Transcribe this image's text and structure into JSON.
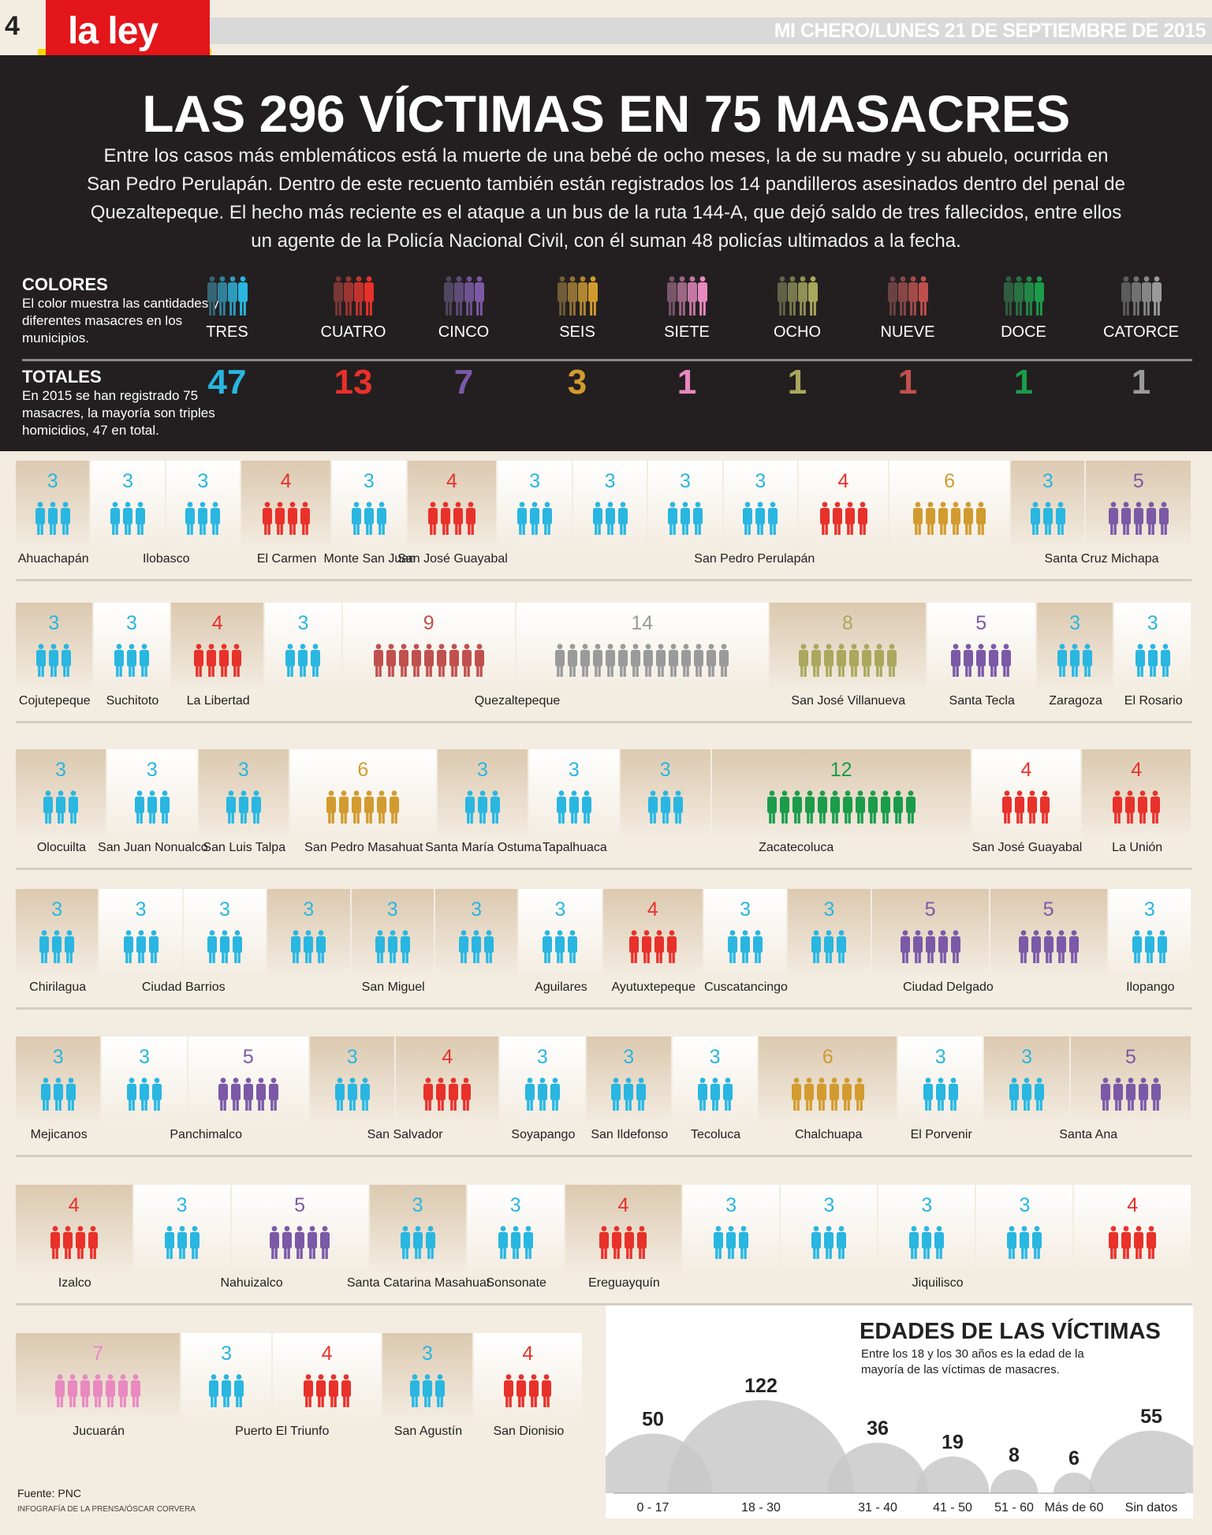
{
  "page_number": "4",
  "section": "la ley",
  "dateline": "MI CHERO/LUNES 21 DE SEPTIEMBRE DE 2015",
  "title": "LAS 296 VÍCTIMAS EN 75 MASACRES",
  "intro": "Entre los casos más emblemáticos está la muerte de una bebé de ocho meses, la de su madre y su abuelo, ocurrida en San Pedro Perulapán. Dentro de este recuento también están registrados los 14 pandilleros asesinados dentro del penal de Quezaltepeque. El hecho más reciente es el ataque a un bus de la ruta 144-A, que dejó saldo de  tres fallecidos, entre ellos un agente de la Policía Nacional Civil, con él suman 48 policías ultimados a la fecha.",
  "colores": {
    "title": "COLORES",
    "text": "El color muestra las cantidades y diferentes masacres en los municipios."
  },
  "totales": {
    "title": "TOTALES",
    "text": "En 2015 se han registrado 75 masacres, la mayoría son triples homicidios, 47 en total."
  },
  "legend": [
    {
      "label": "TRES",
      "total": "47",
      "size": 3,
      "color": "#29b6e0"
    },
    {
      "label": "CUATRO",
      "total": "13",
      "size": 4,
      "color": "#e8312a"
    },
    {
      "label": "CINCO",
      "total": "7",
      "size": 5,
      "color": "#7b59a6"
    },
    {
      "label": "SEIS",
      "total": "3",
      "size": 6,
      "color": "#d29b2f"
    },
    {
      "label": "SIETE",
      "total": "1",
      "size": 7,
      "color": "#e889c0"
    },
    {
      "label": "OCHO",
      "total": "1",
      "size": 8,
      "color": "#a9a85d"
    },
    {
      "label": "NUEVE",
      "total": "1",
      "size": 9,
      "color": "#c0504d"
    },
    {
      "label": "DOCE",
      "total": "1",
      "size": 12,
      "color": "#1a9c4a"
    },
    {
      "label": "CATORCE",
      "total": "1",
      "size": 14,
      "color": "#9a9a9a"
    }
  ],
  "rows": [
    {
      "cells": [
        3,
        3,
        3,
        4,
        3,
        4,
        3,
        3,
        3,
        3,
        4,
        6,
        3,
        5
      ],
      "municipios": [
        {
          "name": "Ahuachapán",
          "span": [
            0,
            0
          ]
        },
        {
          "name": "Ilobasco",
          "span": [
            1,
            2
          ]
        },
        {
          "name": "El Carmen",
          "span": [
            3,
            3
          ]
        },
        {
          "name": "Monte San Juan",
          "span": [
            4,
            4
          ]
        },
        {
          "name": "San José Guayabal",
          "span": [
            5,
            5
          ]
        },
        {
          "name": "San Pedro Perulapán",
          "span": [
            6,
            11
          ]
        },
        {
          "name": "Santa Cruz Michapa",
          "span": [
            12,
            13
          ]
        }
      ]
    },
    {
      "cells": [
        3,
        3,
        4,
        3,
        9,
        14,
        8,
        5,
        3,
        3
      ],
      "municipios": [
        {
          "name": "Cojutepeque",
          "span": [
            0,
            0
          ]
        },
        {
          "name": "Suchitoto",
          "span": [
            1,
            1
          ]
        },
        {
          "name": "La Libertad",
          "span": [
            2,
            2
          ]
        },
        {
          "name": "Quezaltepeque",
          "span": [
            3,
            5
          ]
        },
        {
          "name": "San José Villanueva",
          "span": [
            6,
            6
          ]
        },
        {
          "name": "Santa Tecla",
          "span": [
            7,
            7
          ]
        },
        {
          "name": "Zaragoza",
          "span": [
            8,
            8
          ]
        },
        {
          "name": "El Rosario",
          "span": [
            9,
            9
          ]
        }
      ]
    },
    {
      "cells": [
        3,
        3,
        3,
        6,
        3,
        3,
        3,
        12,
        4,
        4
      ],
      "municipios": [
        {
          "name": "Olocuilta",
          "span": [
            0,
            0
          ]
        },
        {
          "name": "San Juan Nonualco",
          "span": [
            1,
            1
          ]
        },
        {
          "name": "San Luis Talpa",
          "span": [
            2,
            2
          ]
        },
        {
          "name": "San Pedro Masahuat",
          "span": [
            3,
            3
          ]
        },
        {
          "name": "Santa María Ostuma",
          "span": [
            4,
            4
          ]
        },
        {
          "name": "Tapalhuaca",
          "span": [
            5,
            5
          ]
        },
        {
          "name": "Zacatecoluca",
          "span": [
            6,
            7
          ]
        },
        {
          "name": "San José Guayabal",
          "span": [
            8,
            8
          ]
        },
        {
          "name": "La Unión",
          "span": [
            9,
            9
          ]
        }
      ]
    },
    {
      "cells": [
        3,
        3,
        3,
        3,
        3,
        3,
        3,
        4,
        3,
        3,
        5,
        5,
        3
      ],
      "municipios": [
        {
          "name": "Chirilagua",
          "span": [
            0,
            0
          ]
        },
        {
          "name": "Ciudad Barrios",
          "span": [
            1,
            2
          ]
        },
        {
          "name": "San Miguel",
          "span": [
            3,
            5
          ]
        },
        {
          "name": "Aguilares",
          "span": [
            6,
            6
          ]
        },
        {
          "name": "Ayutuxtepeque",
          "span": [
            7,
            7
          ]
        },
        {
          "name": "Cuscatancingo",
          "span": [
            8,
            8
          ]
        },
        {
          "name": "Ciudad Delgado",
          "span": [
            9,
            11
          ]
        },
        {
          "name": "Ilopango",
          "span": [
            12,
            12
          ]
        }
      ]
    },
    {
      "cells": [
        3,
        3,
        5,
        3,
        4,
        3,
        3,
        3,
        6,
        3,
        3,
        5
      ],
      "municipios": [
        {
          "name": "Mejicanos",
          "span": [
            0,
            0
          ]
        },
        {
          "name": "Panchimalco",
          "span": [
            1,
            2
          ]
        },
        {
          "name": "San Salvador",
          "span": [
            3,
            4
          ]
        },
        {
          "name": "Soyapango",
          "span": [
            5,
            5
          ]
        },
        {
          "name": "San Ildefonso",
          "span": [
            6,
            6
          ]
        },
        {
          "name": "Tecoluca",
          "span": [
            7,
            7
          ]
        },
        {
          "name": "Chalchuapa",
          "span": [
            8,
            8
          ]
        },
        {
          "name": "El Porvenir",
          "span": [
            9,
            9
          ]
        },
        {
          "name": "Santa Ana",
          "span": [
            10,
            11
          ]
        }
      ]
    },
    {
      "cells": [
        4,
        3,
        5,
        3,
        3,
        4,
        3,
        3,
        3,
        3,
        4
      ],
      "municipios": [
        {
          "name": "Izalco",
          "span": [
            0,
            0
          ]
        },
        {
          "name": "Nahuizalco",
          "span": [
            1,
            2
          ]
        },
        {
          "name": "Santa Catarina Masahuat",
          "span": [
            3,
            3
          ]
        },
        {
          "name": "Sonsonate",
          "span": [
            4,
            4
          ]
        },
        {
          "name": "Ereguayquín",
          "span": [
            5,
            5
          ]
        },
        {
          "name": "Jiquilisco",
          "span": [
            6,
            10
          ]
        }
      ]
    },
    {
      "cells": [
        7,
        3,
        4,
        3,
        4
      ],
      "municipios": [
        {
          "name": "Jucuarán",
          "span": [
            0,
            0
          ]
        },
        {
          "name": "Puerto El Triunfo",
          "span": [
            1,
            2
          ]
        },
        {
          "name": "San Agustín",
          "span": [
            3,
            3
          ]
        },
        {
          "name": "San Dionisio",
          "span": [
            4,
            4
          ]
        }
      ]
    }
  ],
  "ages": {
    "title": "EDADES DE LAS VÍCTIMAS",
    "subtitle": "Entre los 18 y los 30 años es la edad de la mayoría de las víctimas de masacres."
  },
  "chart_data": {
    "type": "bubble",
    "title": "EDADES DE LAS VÍCTIMAS",
    "categories": [
      "0 - 17",
      "18 - 30",
      "31 - 40",
      "41 - 50",
      "51 - 60",
      "Más de 60",
      "Sin datos"
    ],
    "values": [
      50,
      122,
      36,
      19,
      8,
      6,
      55
    ]
  },
  "fuente": "Fuente: PNC",
  "credit": "INFOGRAFÍA DE LA PRENSA/ÓSCAR CORVERA"
}
